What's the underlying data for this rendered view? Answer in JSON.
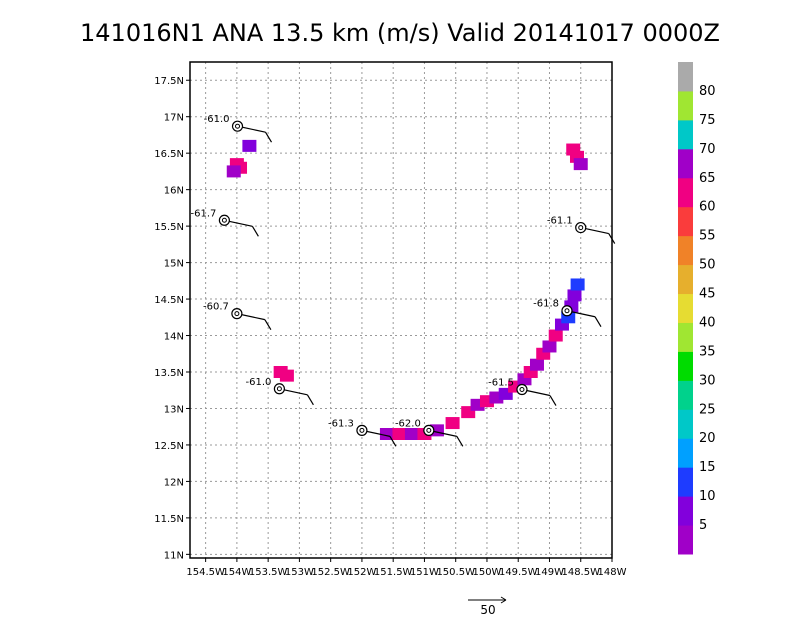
{
  "title": "141016N1 ANA 13.5 km (m/s) Valid 20141017 0000Z",
  "chart_data": {
    "type": "scatter",
    "title": "141016N1 ANA 13.5 km (m/s) Valid 20141017 0000Z",
    "xlim": [
      -154.75,
      -148.0
    ],
    "ylim": [
      10.95,
      17.75
    ],
    "x_ticks": [
      -154.5,
      -154,
      -153.5,
      -153,
      -152.5,
      -152,
      -151.5,
      -151,
      -150.5,
      -150,
      -149.5,
      -149,
      -148.5,
      -148
    ],
    "x_tick_labels": [
      "154.5W",
      "154W",
      "153.5W",
      "153W",
      "152.5W",
      "152W",
      "151.5W",
      "151W",
      "150.5W",
      "150W",
      "149.5W",
      "149W",
      "148.5W",
      "148W"
    ],
    "y_ticks": [
      11,
      11.5,
      12,
      12.5,
      13,
      13.5,
      14,
      14.5,
      15,
      15.5,
      16,
      16.5,
      17,
      17.5
    ],
    "y_tick_labels": [
      "11N",
      "11.5N",
      "12N",
      "12.5N",
      "13N",
      "13.5N",
      "14N",
      "14.5N",
      "15N",
      "15.5N",
      "16N",
      "16.5N",
      "17N",
      "17.5N"
    ],
    "grid": true,
    "stations": [
      {
        "lon": -153.99,
        "lat": 16.87,
        "label": "-61.0"
      },
      {
        "lon": -154.2,
        "lat": 15.58,
        "label": "-61.7"
      },
      {
        "lon": -154.0,
        "lat": 14.3,
        "label": "-60.7"
      },
      {
        "lon": -153.32,
        "lat": 13.27,
        "label": "-61.0"
      },
      {
        "lon": -152.0,
        "lat": 12.7,
        "label": "-61.3"
      },
      {
        "lon": -150.93,
        "lat": 12.7,
        "label": "-62.0"
      },
      {
        "lon": -149.44,
        "lat": 13.26,
        "label": "-61.5"
      },
      {
        "lon": -148.72,
        "lat": 14.34,
        "label": "-61.8"
      },
      {
        "lon": -148.5,
        "lat": 15.48,
        "label": "-61.1"
      }
    ],
    "wind_cells": [
      {
        "lon": -154.0,
        "lat": 16.35,
        "value": 65
      },
      {
        "lon": -153.95,
        "lat": 16.3,
        "value": 65
      },
      {
        "lon": -154.05,
        "lat": 16.25,
        "value": 70
      },
      {
        "lon": -153.8,
        "lat": 16.6,
        "value": 10
      },
      {
        "lon": -148.62,
        "lat": 16.55,
        "value": 65
      },
      {
        "lon": -148.56,
        "lat": 16.45,
        "value": 65
      },
      {
        "lon": -148.5,
        "lat": 16.35,
        "value": 70
      },
      {
        "lon": -153.3,
        "lat": 13.5,
        "value": 65
      },
      {
        "lon": -153.2,
        "lat": 13.45,
        "value": 65
      },
      {
        "lon": -151.6,
        "lat": 12.65,
        "value": 70
      },
      {
        "lon": -151.4,
        "lat": 12.65,
        "value": 65
      },
      {
        "lon": -151.2,
        "lat": 12.65,
        "value": 70
      },
      {
        "lon": -151.0,
        "lat": 12.65,
        "value": 65
      },
      {
        "lon": -150.8,
        "lat": 12.7,
        "value": 70
      },
      {
        "lon": -150.55,
        "lat": 12.8,
        "value": 65
      },
      {
        "lon": -150.3,
        "lat": 12.95,
        "value": 65
      },
      {
        "lon": -150.15,
        "lat": 13.05,
        "value": 70
      },
      {
        "lon": -150.0,
        "lat": 13.1,
        "value": 65
      },
      {
        "lon": -149.85,
        "lat": 13.15,
        "value": 70
      },
      {
        "lon": -149.7,
        "lat": 13.2,
        "value": 10
      },
      {
        "lon": -149.55,
        "lat": 13.3,
        "value": 65
      },
      {
        "lon": -149.4,
        "lat": 13.4,
        "value": 70
      },
      {
        "lon": -149.3,
        "lat": 13.5,
        "value": 65
      },
      {
        "lon": -149.2,
        "lat": 13.6,
        "value": 70
      },
      {
        "lon": -149.1,
        "lat": 13.75,
        "value": 65
      },
      {
        "lon": -149.0,
        "lat": 13.85,
        "value": 70
      },
      {
        "lon": -148.9,
        "lat": 14.0,
        "value": 65
      },
      {
        "lon": -148.8,
        "lat": 14.15,
        "value": 10
      },
      {
        "lon": -148.7,
        "lat": 14.25,
        "value": 15
      },
      {
        "lon": -148.65,
        "lat": 14.4,
        "value": 10
      },
      {
        "lon": -148.6,
        "lat": 14.55,
        "value": 10
      },
      {
        "lon": -148.55,
        "lat": 14.7,
        "value": 15
      }
    ],
    "colorbar": {
      "labels": [
        "5",
        "10",
        "15",
        "20",
        "25",
        "30",
        "35",
        "40",
        "45",
        "50",
        "55",
        "60",
        "65",
        "70",
        "75",
        "80"
      ],
      "colors": [
        "#a000c8",
        "#8200dc",
        "#1e3cff",
        "#00a0ff",
        "#00c8c8",
        "#00d28c",
        "#00dc00",
        "#a0e632",
        "#e6dc32",
        "#e6af2d",
        "#f08228",
        "#fa3c3c",
        "#f00082",
        "#a000c8",
        "#00c8c8",
        "#a0e632",
        "#aaaaaa"
      ]
    },
    "reference_vector": {
      "label": "50"
    }
  }
}
